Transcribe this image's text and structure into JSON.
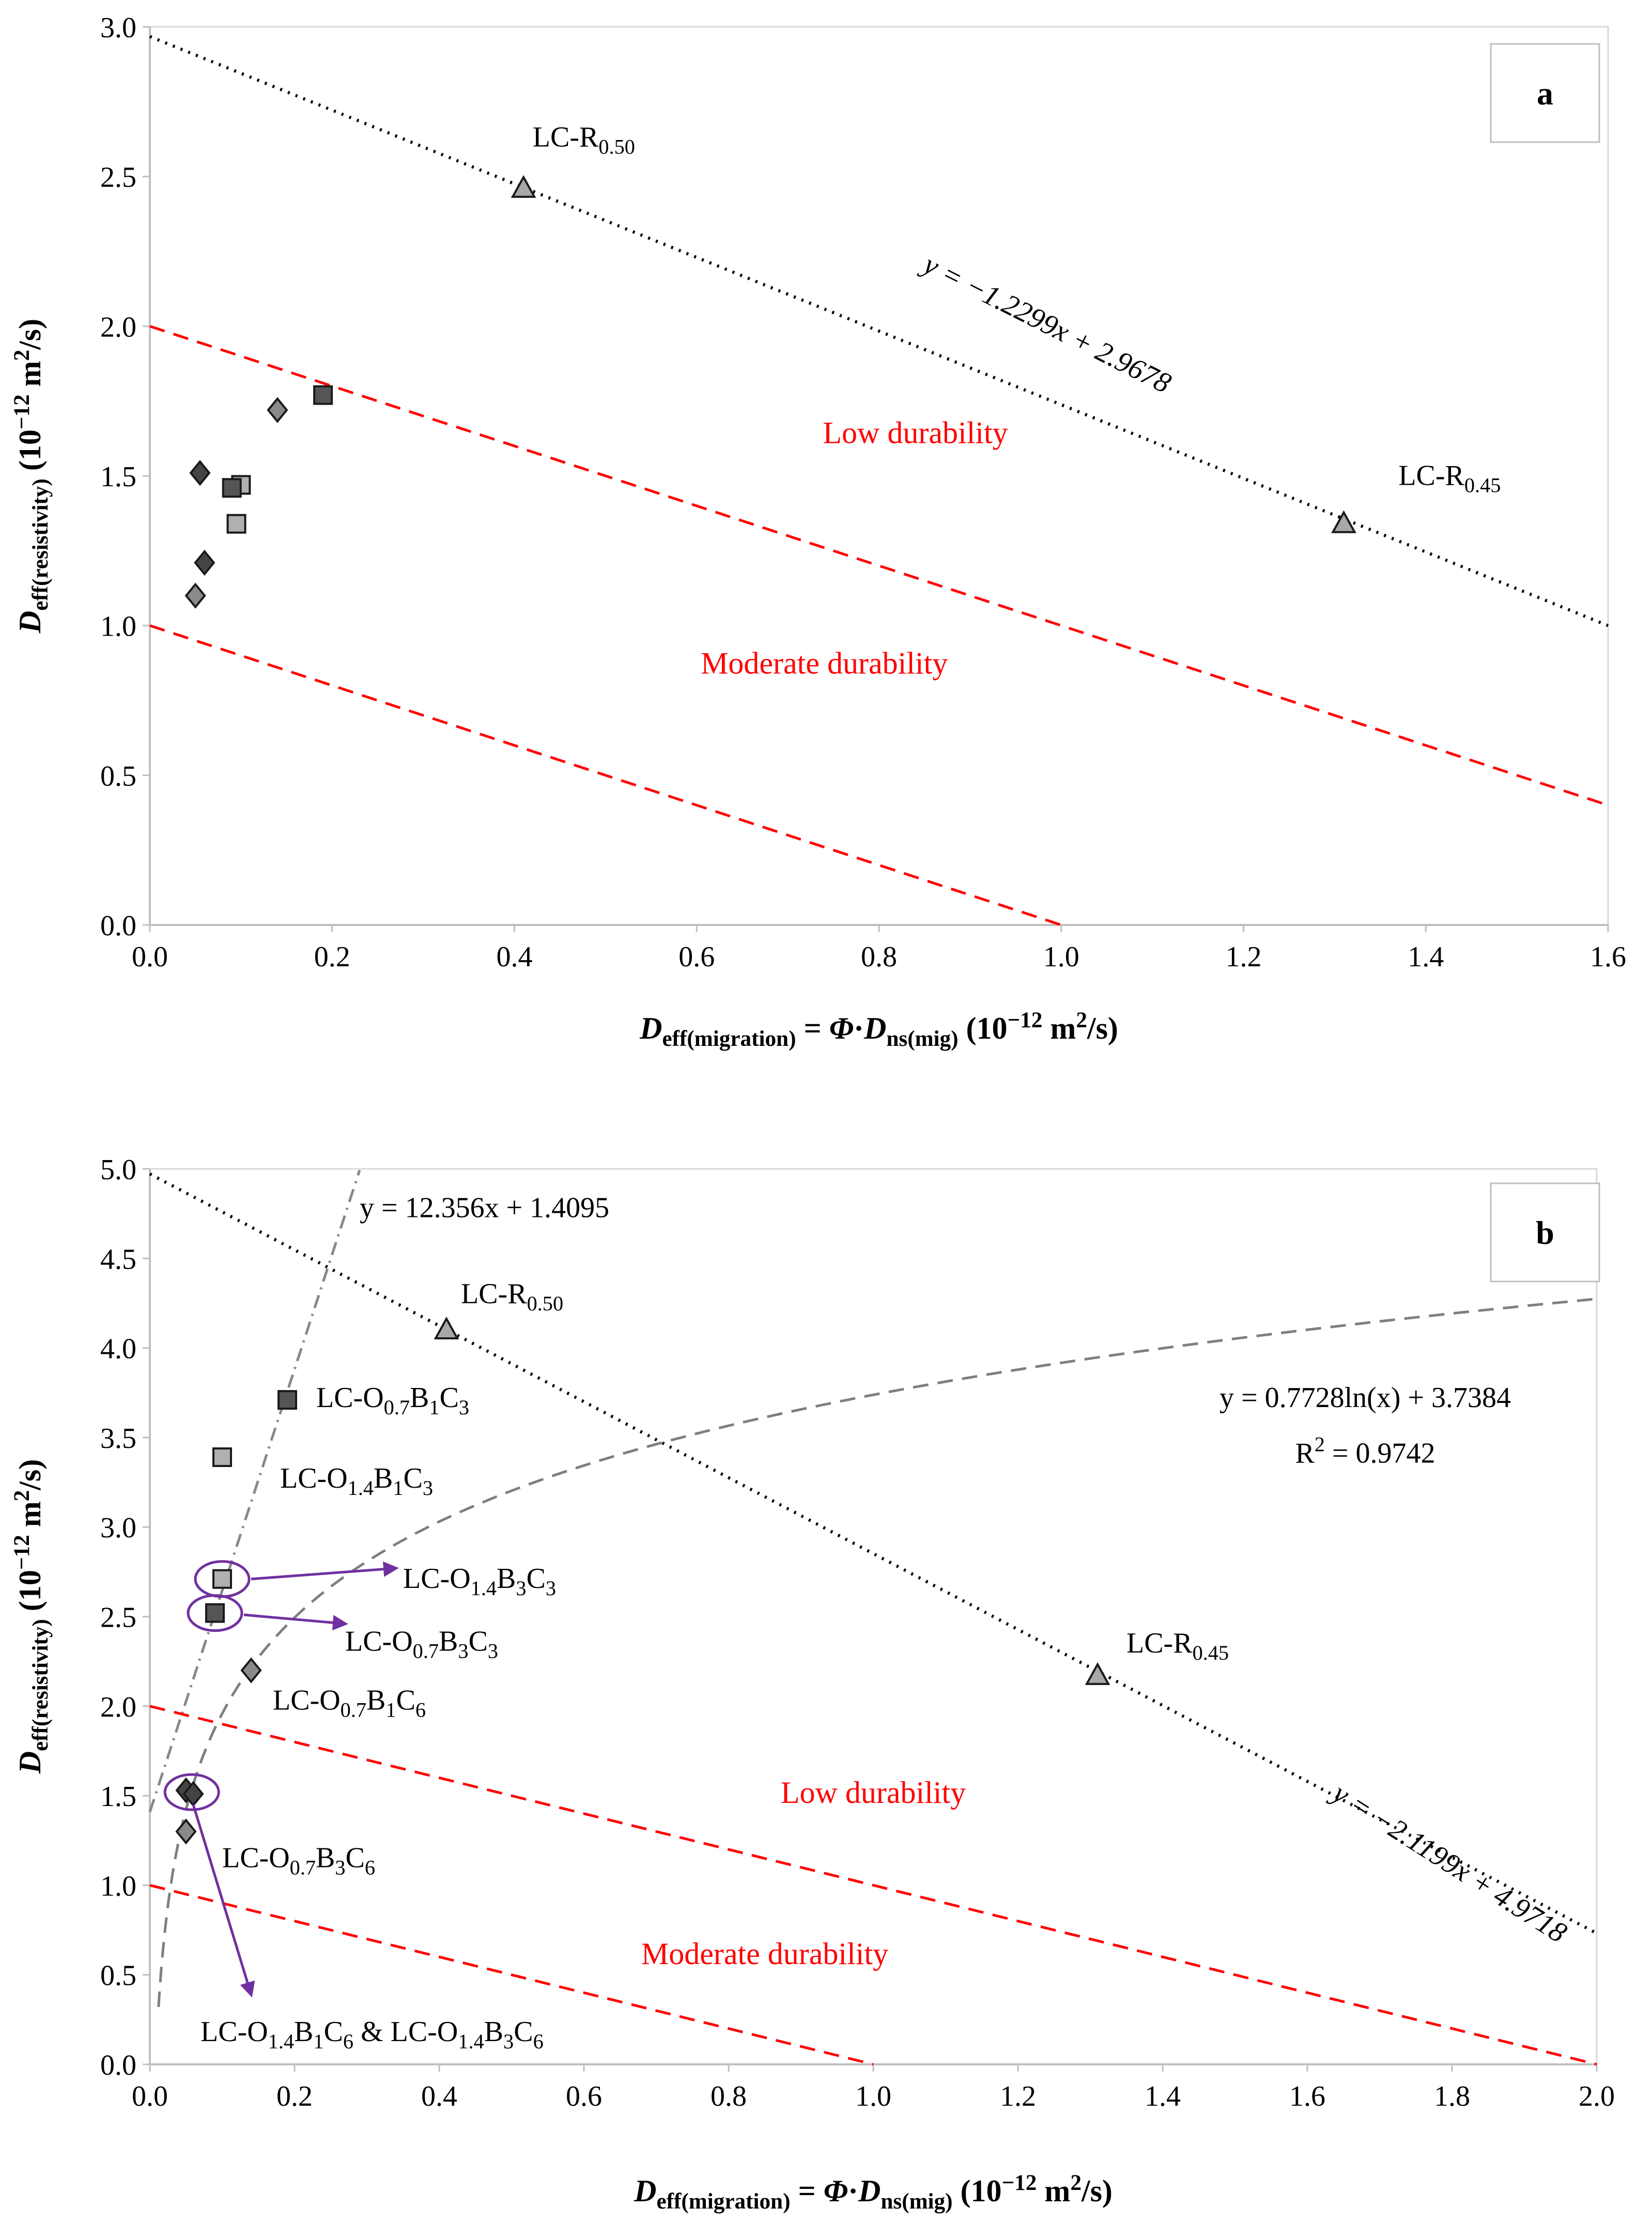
{
  "chart_data": [
    {
      "type": "scatter",
      "panel": "a",
      "xlim": [
        0,
        1.6
      ],
      "ylim": [
        0,
        3.0
      ],
      "xticks": [
        "0.0",
        "0.2",
        "0.4",
        "0.6",
        "0.8",
        "1.0",
        "1.2",
        "1.4",
        "1.6"
      ],
      "yticks": [
        "0.0",
        "0.5",
        "1.0",
        "1.5",
        "2.0",
        "2.5",
        "3.0"
      ],
      "xlabel": "D eff(migration) = Φ·D ns(mig) (10−12 m2/s)",
      "ylabel": "D eff(resistivity) (10−12 m2/s)",
      "series": [
        {
          "name": "light-grey-squares",
          "marker": "square",
          "color": "#b0b0b0",
          "points": [
            [
              0.095,
              1.34
            ],
            [
              0.1,
              1.47
            ]
          ]
        },
        {
          "name": "dark-grey-squares",
          "marker": "square",
          "color": "#555555",
          "points": [
            [
              0.09,
              1.46
            ],
            [
              0.19,
              1.77
            ]
          ]
        },
        {
          "name": "grey-diamonds",
          "marker": "diamond",
          "color": "#8a8a8a",
          "points": [
            [
              0.14,
              1.72
            ],
            [
              0.05,
              1.1
            ]
          ]
        },
        {
          "name": "dark-diamonds",
          "marker": "diamond",
          "color": "#444444",
          "points": [
            [
              0.055,
              1.51
            ],
            [
              0.06,
              1.21
            ]
          ]
        },
        {
          "name": "triangles",
          "marker": "triangle",
          "color": "#a8a8a8",
          "points": [
            [
              0.41,
              2.46
            ],
            [
              1.31,
              1.34
            ]
          ]
        }
      ],
      "lines": [
        {
          "name": "black-dotted-fit",
          "style": "dotted",
          "color": "#000000",
          "slope": -1.2299,
          "intercept": 2.9678,
          "x": [
            0,
            1.6
          ]
        },
        {
          "name": "low-durability-boundary",
          "style": "dashed",
          "color": "#ff0000",
          "x": [
            0,
            1.6
          ],
          "y": [
            2.0,
            0.4
          ]
        },
        {
          "name": "moderate-durability-boundary",
          "style": "dashed",
          "color": "#ff0000",
          "x": [
            0,
            1.0
          ],
          "y": [
            1.0,
            0.0
          ]
        }
      ],
      "point_labels": [
        {
          "base": "LC-R",
          "sub": "0.50",
          "x": 0.42,
          "y": 2.6
        },
        {
          "base": "LC-R",
          "sub": "0.45",
          "x": 1.37,
          "y": 1.47
        }
      ],
      "equation": "y = −1.2299x + 2.9678",
      "zone_labels": [
        "Low durability",
        "Moderate durability"
      ],
      "panel_label": "a"
    },
    {
      "type": "scatter",
      "panel": "b",
      "xlim": [
        0,
        2.0
      ],
      "ylim": [
        0,
        5.0
      ],
      "xticks": [
        "0.0",
        "0.2",
        "0.4",
        "0.6",
        "0.8",
        "1.0",
        "1.2",
        "1.4",
        "1.6",
        "1.8",
        "2.0"
      ],
      "yticks": [
        "0.0",
        "0.5",
        "1.0",
        "1.5",
        "2.0",
        "2.5",
        "3.0",
        "3.5",
        "4.0",
        "4.5",
        "5.0"
      ],
      "xlabel": "D eff(migration) = Φ·D ns(mig) (10−12 m2/s)",
      "ylabel": "D eff(resistivity) (10−12 m2/s)",
      "series": [
        {
          "name": "light-grey-squares",
          "marker": "square",
          "color": "#b0b0b0",
          "points": [
            [
              0.1,
              3.39
            ],
            [
              0.1,
              2.71
            ]
          ]
        },
        {
          "name": "dark-grey-squares",
          "marker": "square",
          "color": "#555555",
          "points": [
            [
              0.19,
              3.71
            ],
            [
              0.09,
              2.52
            ]
          ]
        },
        {
          "name": "grey-diamonds",
          "marker": "diamond",
          "color": "#8a8a8a",
          "points": [
            [
              0.14,
              2.2
            ],
            [
              0.05,
              1.3
            ]
          ]
        },
        {
          "name": "dark-diamonds",
          "marker": "diamond",
          "color": "#444444",
          "points": [
            [
              0.05,
              1.53
            ],
            [
              0.06,
              1.51
            ]
          ]
        },
        {
          "name": "triangles",
          "marker": "triangle",
          "color": "#a8a8a8",
          "points": [
            [
              0.41,
              4.1
            ],
            [
              1.31,
              2.17
            ]
          ]
        }
      ],
      "lines": [
        {
          "name": "black-dotted-fit",
          "style": "dotted",
          "color": "#000000",
          "slope": -2.1199,
          "intercept": 4.9718,
          "x": [
            0,
            2.0
          ]
        },
        {
          "name": "linear-dashdot-fit",
          "style": "dashdot",
          "color": "#888888",
          "slope": 12.356,
          "intercept": 1.4095,
          "x": [
            0,
            0.29
          ]
        },
        {
          "name": "log-fit",
          "style": "dashed",
          "color": "#7f7f7f",
          "log_a": 0.7728,
          "log_b": 3.7384,
          "x": [
            0.012,
            2.0
          ]
        },
        {
          "name": "low-durability-boundary",
          "style": "dashed",
          "color": "#ff0000",
          "x": [
            0,
            2.0
          ],
          "y": [
            2.0,
            0.0
          ]
        },
        {
          "name": "moderate-durability-boundary",
          "style": "dashed",
          "color": "#ff0000",
          "x": [
            0,
            1.0
          ],
          "y": [
            1.0,
            0.0
          ]
        }
      ],
      "point_labels": [
        {
          "base": "LC-R",
          "sub": "0.50",
          "x": 0.43,
          "y": 4.25
        },
        {
          "base": "LC-R",
          "sub": "0.45",
          "x": 1.35,
          "y": 2.3
        },
        {
          "base": "LC-O",
          "sub": "0.7",
          "rest": [
            [
              "B",
              "1"
            ],
            [
              "C",
              "3"
            ]
          ],
          "x": 0.23,
          "y": 3.67
        },
        {
          "base": "LC-O",
          "sub": "1.4",
          "rest": [
            [
              "B",
              "1"
            ],
            [
              "C",
              "3"
            ]
          ],
          "x": 0.18,
          "y": 3.22
        },
        {
          "base": "LC-O",
          "sub": "1.4",
          "rest": [
            [
              "B",
              "3"
            ],
            [
              "C",
              "3"
            ]
          ],
          "x": 0.35,
          "y": 2.66
        },
        {
          "base": "LC-O",
          "sub": "0.7",
          "rest": [
            [
              "B",
              "3"
            ],
            [
              "C",
              "3"
            ]
          ],
          "x": 0.27,
          "y": 2.31
        },
        {
          "base": "LC-O",
          "sub": "0.7",
          "rest": [
            [
              "B",
              "1"
            ],
            [
              "C",
              "6"
            ]
          ],
          "x": 0.17,
          "y": 1.98
        },
        {
          "base": "LC-O",
          "sub": "0.7",
          "rest": [
            [
              "B",
              "3"
            ],
            [
              "C",
              "6"
            ]
          ],
          "x": 0.1,
          "y": 1.1
        }
      ],
      "combined_label": {
        "base1": "LC-O",
        "sub1": "1.4",
        "b1": "1",
        "c1": "6",
        "joiner": " & ",
        "base2": "LC-O",
        "sub2": "1.4",
        "b2": "3",
        "c2": "6",
        "x": 0.07,
        "y": 0.13
      },
      "equations": {
        "linear": "y = 12.356x + 1.4095",
        "log": "y = 0.7728ln(x) + 3.7384",
        "r2": "R2 = 0.9742",
        "dotted": "y = −2.1199x + 4.9718"
      },
      "zone_labels": [
        "Low durability",
        "Moderate durability"
      ],
      "panel_label": "b"
    }
  ]
}
